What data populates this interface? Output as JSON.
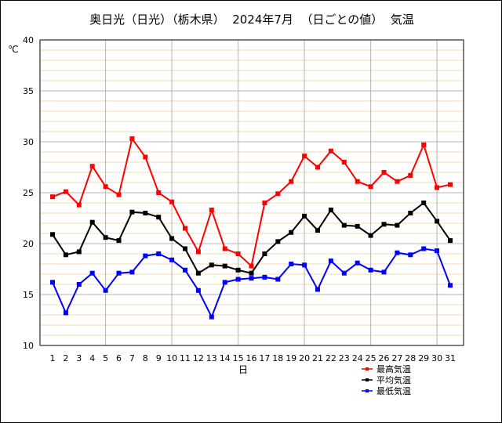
{
  "chart_data": {
    "type": "line",
    "title": "奥日光（日光）（栃木県）  2024年7月  （日ごとの値）  気温",
    "ylabel": "℃",
    "xlabel": "日",
    "ylim": [
      10,
      40
    ],
    "yticks": [
      10,
      15,
      20,
      25,
      30,
      35,
      40
    ],
    "x": [
      1,
      2,
      3,
      4,
      5,
      6,
      7,
      8,
      9,
      10,
      11,
      12,
      13,
      14,
      15,
      16,
      17,
      18,
      19,
      20,
      21,
      22,
      23,
      24,
      25,
      26,
      27,
      28,
      29,
      30,
      31
    ],
    "grid": true,
    "legend_position": "bottom-right",
    "series": [
      {
        "name": "最高気温",
        "color": "#ff0000",
        "values": [
          24.6,
          25.1,
          23.8,
          27.6,
          25.6,
          24.8,
          30.3,
          28.5,
          25.0,
          24.1,
          21.5,
          19.2,
          23.3,
          19.5,
          19.0,
          17.8,
          24.0,
          24.9,
          26.1,
          28.6,
          27.5,
          29.1,
          28.0,
          26.1,
          25.6,
          27.0,
          26.1,
          26.7,
          29.7,
          25.5,
          25.8
        ]
      },
      {
        "name": "平均気温",
        "color": "#000000",
        "values": [
          20.9,
          18.9,
          19.2,
          22.1,
          20.6,
          20.3,
          23.1,
          23.0,
          22.6,
          20.5,
          19.5,
          17.1,
          17.9,
          17.8,
          17.4,
          17.1,
          19.0,
          20.2,
          21.1,
          22.7,
          21.3,
          23.3,
          21.8,
          21.7,
          20.8,
          21.9,
          21.8,
          23.0,
          24.0,
          22.2,
          20.3
        ]
      },
      {
        "name": "最低気温",
        "color": "#0000ff",
        "values": [
          16.2,
          13.2,
          16.0,
          17.1,
          15.4,
          17.1,
          17.2,
          18.8,
          19.0,
          18.4,
          17.4,
          15.4,
          12.8,
          16.2,
          16.5,
          16.6,
          16.7,
          16.5,
          18.0,
          17.9,
          15.5,
          18.3,
          17.1,
          18.1,
          17.4,
          17.2,
          19.1,
          18.9,
          19.5,
          19.3,
          15.9
        ]
      }
    ]
  }
}
